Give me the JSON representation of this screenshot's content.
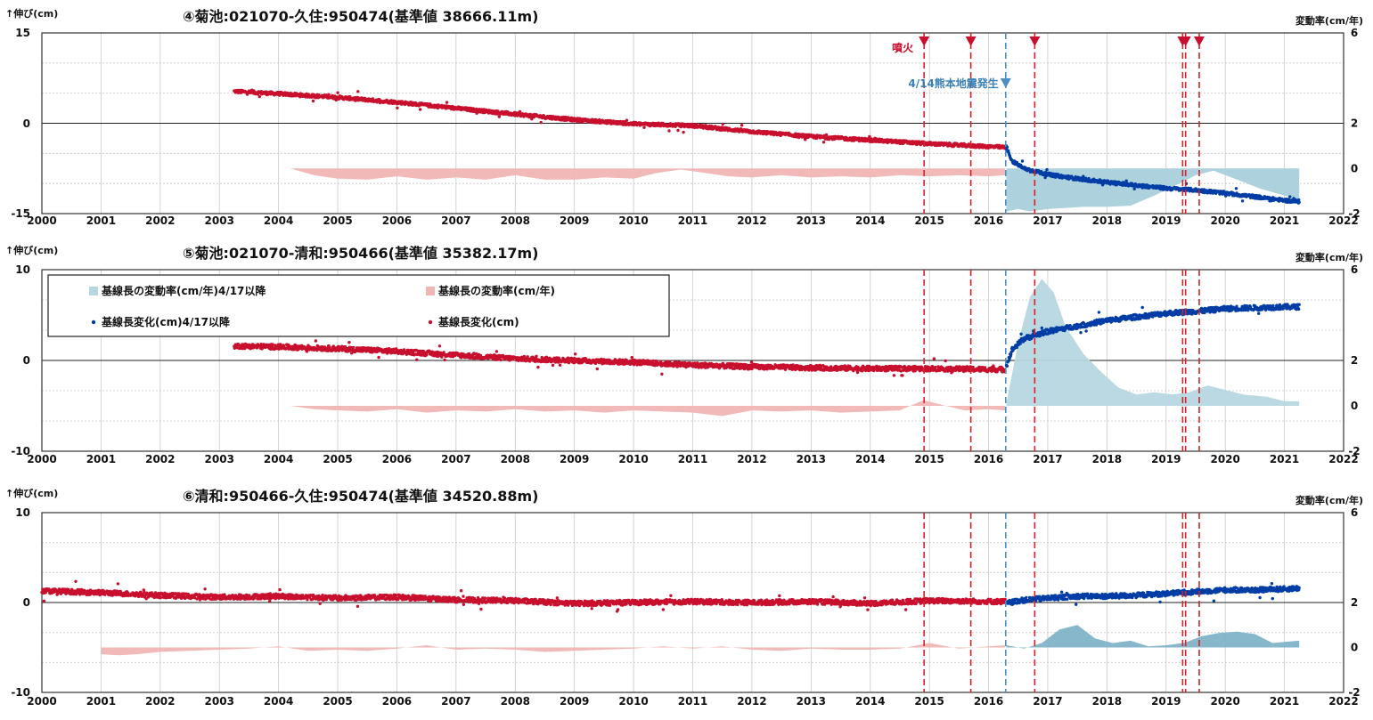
{
  "chart_data": [
    {
      "type": "scatter",
      "title": "④菊池:021070-久住:950474(基準値 38666.11m)",
      "ylabel": "↑伸び(cm)",
      "y2label": "変動率(cm/年)",
      "ylim": [
        -15,
        15
      ],
      "y2lim": [
        -2,
        6
      ],
      "yticks": [
        15,
        0,
        -15
      ],
      "y2ticks": [
        6,
        2,
        0,
        -2
      ],
      "xlim": [
        2000,
        2022
      ],
      "xticks": [
        "2000",
        "2001",
        "2002",
        "2003",
        "2004",
        "2005",
        "2006",
        "2007",
        "2008",
        "2009",
        "2010",
        "2011",
        "2012",
        "2013",
        "2014",
        "2015",
        "2016",
        "2017",
        "2018",
        "2019",
        "2020",
        "2021",
        "2022"
      ],
      "grid": true,
      "eruption_label": "噴火",
      "quake_label": "4/14熊本地震発生",
      "eruptions": [
        2014.91,
        2015.7,
        2016.78,
        2019.28,
        2019.33,
        2019.56
      ],
      "quake": 2016.29,
      "series": [
        {
          "name": "基線長変化(cm)",
          "color": "#c8102e",
          "x": [
            2003.25,
            2004.0,
            2005.0,
            2006.0,
            2007.0,
            2008.0,
            2009.0,
            2010.0,
            2011.0,
            2012.0,
            2013.0,
            2014.0,
            2015.0,
            2016.28
          ],
          "values": [
            5.3,
            4.9,
            4.3,
            3.5,
            2.5,
            1.5,
            0.6,
            -0.1,
            -0.4,
            -1.4,
            -2.2,
            -2.8,
            -3.4,
            -4.0
          ]
        },
        {
          "name": "基線長変化(cm)4/17以降",
          "color": "#003da5",
          "x": [
            2016.3,
            2016.4,
            2016.6,
            2017.0,
            2017.5,
            2018.0,
            2018.5,
            2019.0,
            2019.5,
            2020.0,
            2020.5,
            2021.0,
            2021.25
          ],
          "values": [
            -4.0,
            -6.3,
            -7.5,
            -8.5,
            -9.2,
            -9.8,
            -10.3,
            -10.8,
            -11.1,
            -11.6,
            -12.2,
            -12.8,
            -13.0
          ]
        },
        {
          "name": "基線長の変動率(cm/年)",
          "color": "#f0b6b4",
          "x": [
            2004.2,
            2004.6,
            2005.0,
            2005.5,
            2006.0,
            2006.5,
            2007.0,
            2007.5,
            2008.0,
            2008.5,
            2009.0,
            2009.5,
            2010.0,
            2010.4,
            2010.8,
            2011.2,
            2011.6,
            2012.0,
            2012.5,
            2013.0,
            2013.5,
            2014.0,
            2014.5,
            2015.0,
            2015.5,
            2016.0,
            2016.28
          ],
          "values": [
            0,
            -0.3,
            -0.45,
            -0.5,
            -0.35,
            -0.5,
            -0.4,
            -0.5,
            -0.3,
            -0.5,
            -0.5,
            -0.4,
            -0.45,
            -0.2,
            -0.05,
            -0.2,
            -0.35,
            -0.4,
            -0.3,
            -0.4,
            -0.35,
            -0.4,
            -0.3,
            -0.35,
            -0.3,
            -0.35,
            -0.3
          ]
        },
        {
          "name": "基線長の変動率(cm/年)4/17以降",
          "color": "#a9cfdb",
          "x": [
            2016.3,
            2016.5,
            2016.7,
            2017.0,
            2017.3,
            2017.6,
            2018.0,
            2018.4,
            2018.8,
            2019.2,
            2019.5,
            2019.8,
            2020.2,
            2020.6,
            2021.0,
            2021.25
          ],
          "values": [
            -1.9,
            -1.8,
            -1.9,
            -1.8,
            -1.75,
            -1.7,
            -1.7,
            -1.65,
            -1.2,
            -0.7,
            -0.3,
            -0.1,
            -0.5,
            -0.9,
            -1.2,
            -1.4
          ]
        }
      ]
    },
    {
      "type": "scatter",
      "title": "⑤菊池:021070-清和:950466(基準値 35382.17m)",
      "ylabel": "↑伸び(cm)",
      "y2label": "変動率(cm/年)",
      "ylim": [
        -10,
        10
      ],
      "y2lim": [
        -2,
        6
      ],
      "yticks": [
        10,
        0,
        -10
      ],
      "y2ticks": [
        6,
        2,
        0,
        -2
      ],
      "xlim": [
        2000,
        2022
      ],
      "xticks": [
        "2000",
        "2001",
        "2002",
        "2003",
        "2004",
        "2005",
        "2006",
        "2007",
        "2008",
        "2009",
        "2010",
        "2011",
        "2012",
        "2013",
        "2014",
        "2015",
        "2016",
        "2017",
        "2018",
        "2019",
        "2020",
        "2021",
        "2022"
      ],
      "grid": true,
      "eruptions": [
        2014.91,
        2015.7,
        2016.78,
        2019.28,
        2019.33,
        2019.56
      ],
      "quake": 2016.29,
      "legend": {
        "placement": "top-left",
        "items": [
          "基線長の変動率(cm/年)4/17以降",
          "基線長の変動率(cm/年)",
          "基線長変化(cm)4/17以降",
          "基線長変化(cm)"
        ]
      },
      "series": [
        {
          "name": "基線長変化(cm)",
          "color": "#c8102e",
          "x": [
            2003.25,
            2004.0,
            2005.0,
            2006.0,
            2007.0,
            2008.0,
            2009.0,
            2010.0,
            2011.0,
            2012.0,
            2013.0,
            2014.0,
            2015.0,
            2016.28
          ],
          "values": [
            1.6,
            1.5,
            1.3,
            1.0,
            0.6,
            0.2,
            0.0,
            -0.2,
            -0.5,
            -0.7,
            -0.8,
            -0.9,
            -0.9,
            -1.0
          ]
        },
        {
          "name": "基線長変化(cm)4/17以降",
          "color": "#003da5",
          "x": [
            2016.3,
            2016.4,
            2016.6,
            2017.0,
            2017.5,
            2018.0,
            2018.5,
            2019.0,
            2019.5,
            2020.0,
            2020.5,
            2021.0,
            2021.25
          ],
          "values": [
            -0.6,
            1.2,
            2.4,
            3.2,
            3.8,
            4.4,
            4.8,
            5.2,
            5.4,
            5.7,
            5.8,
            5.9,
            5.9
          ]
        },
        {
          "name": "基線長の変動率(cm/年)",
          "color": "#f0b6b4",
          "x": [
            2004.2,
            2004.6,
            2005.0,
            2005.5,
            2006.0,
            2006.5,
            2007.0,
            2007.5,
            2008.0,
            2008.5,
            2009.0,
            2009.5,
            2010.0,
            2010.5,
            2011.0,
            2011.5,
            2012.0,
            2012.5,
            2013.0,
            2013.5,
            2014.0,
            2014.5,
            2014.9,
            2015.2,
            2015.6,
            2016.0,
            2016.28
          ],
          "values": [
            0,
            -0.15,
            -0.2,
            -0.25,
            -0.15,
            -0.3,
            -0.2,
            -0.25,
            -0.15,
            -0.25,
            -0.2,
            -0.3,
            -0.2,
            -0.25,
            -0.3,
            -0.45,
            -0.2,
            -0.25,
            -0.2,
            -0.3,
            -0.25,
            -0.2,
            0.25,
            0.05,
            -0.2,
            -0.15,
            -0.2
          ]
        },
        {
          "name": "基線長の変動率(cm/年)4/17以降",
          "color": "#b7d7e0",
          "x": [
            2016.3,
            2016.5,
            2016.7,
            2016.9,
            2017.1,
            2017.3,
            2017.6,
            2017.9,
            2018.2,
            2018.5,
            2018.8,
            2019.1,
            2019.4,
            2019.7,
            2020.0,
            2020.3,
            2020.7,
            2021.0,
            2021.25
          ],
          "values": [
            0.1,
            2.8,
            4.8,
            5.6,
            5.0,
            3.5,
            2.3,
            1.5,
            0.8,
            0.5,
            0.6,
            0.5,
            0.6,
            0.9,
            0.7,
            0.5,
            0.4,
            0.2,
            0.2
          ]
        }
      ]
    },
    {
      "type": "scatter",
      "title": "⑥清和:950466-久住:950474(基準値 34520.88m)",
      "ylabel": "↑伸び(cm)",
      "y2label": "変動率(cm/年)",
      "ylim": [
        -10,
        10
      ],
      "y2lim": [
        -2,
        6
      ],
      "yticks": [
        10,
        0,
        -10
      ],
      "y2ticks": [
        6,
        2,
        0,
        -2
      ],
      "xlim": [
        2000,
        2022
      ],
      "xticks": [
        "2000",
        "2001",
        "2002",
        "2003",
        "2004",
        "2005",
        "2006",
        "2007",
        "2008",
        "2009",
        "2010",
        "2011",
        "2012",
        "2013",
        "2014",
        "2015",
        "2016",
        "2017",
        "2018",
        "2019",
        "2020",
        "2021",
        "2022"
      ],
      "grid": true,
      "eruptions": [
        2014.91,
        2015.7,
        2016.78,
        2019.28,
        2019.33,
        2019.56
      ],
      "quake": 2016.29,
      "series": [
        {
          "name": "基線長変化(cm)",
          "color": "#c8102e",
          "x": [
            2000.0,
            2001.0,
            2002.0,
            2003.0,
            2004.0,
            2005.0,
            2006.0,
            2007.0,
            2008.0,
            2009.0,
            2010.0,
            2011.0,
            2012.0,
            2013.0,
            2014.0,
            2015.0,
            2016.28
          ],
          "values": [
            1.3,
            1.1,
            0.8,
            0.6,
            0.7,
            0.5,
            0.6,
            0.3,
            0.2,
            -0.1,
            0.0,
            0.1,
            0.0,
            0.1,
            -0.1,
            0.2,
            0.1
          ]
        },
        {
          "name": "基線長変化(cm)4/17以降",
          "color": "#003da5",
          "x": [
            2016.3,
            2016.5,
            2017.0,
            2017.5,
            2018.0,
            2018.5,
            2019.0,
            2019.5,
            2020.0,
            2020.5,
            2021.0,
            2021.25
          ],
          "values": [
            -0.1,
            0.2,
            0.5,
            0.7,
            0.7,
            0.8,
            1.0,
            1.2,
            1.4,
            1.4,
            1.5,
            1.6
          ]
        },
        {
          "name": "基線長の変動率(cm/年)",
          "color": "#f0b6b4",
          "x": [
            2001.0,
            2001.3,
            2001.6,
            2002.0,
            2003.0,
            2003.5,
            2004.0,
            2004.5,
            2005.0,
            2005.5,
            2006.0,
            2006.5,
            2007.0,
            2007.5,
            2008.0,
            2008.5,
            2009.0,
            2009.5,
            2010.0,
            2010.5,
            2011.0,
            2011.5,
            2012.0,
            2012.5,
            2013.0,
            2013.5,
            2014.0,
            2014.5,
            2015.0,
            2015.5,
            2016.0,
            2016.28
          ],
          "values": [
            -0.3,
            -0.35,
            -0.3,
            -0.2,
            -0.1,
            -0.05,
            0.05,
            -0.15,
            -0.1,
            -0.15,
            -0.05,
            0.1,
            -0.1,
            -0.05,
            -0.1,
            -0.2,
            -0.15,
            -0.1,
            -0.05,
            0.05,
            -0.05,
            0.05,
            -0.1,
            -0.15,
            -0.05,
            -0.1,
            -0.1,
            -0.05,
            0.2,
            -0.05,
            0.05,
            0.1
          ]
        },
        {
          "name": "基線長の変動率(cm/年)4/17以降",
          "color": "#7fb3c8",
          "x": [
            2016.3,
            2016.6,
            2016.9,
            2017.2,
            2017.5,
            2017.8,
            2018.1,
            2018.4,
            2018.7,
            2019.0,
            2019.3,
            2019.6,
            2019.9,
            2020.2,
            2020.5,
            2020.8,
            2021.0,
            2021.25
          ],
          "values": [
            0.1,
            -0.05,
            0.2,
            0.8,
            1.0,
            0.4,
            0.2,
            0.3,
            0.05,
            0.1,
            0.2,
            0.5,
            0.65,
            0.7,
            0.6,
            0.2,
            0.25,
            0.3
          ]
        }
      ]
    }
  ]
}
